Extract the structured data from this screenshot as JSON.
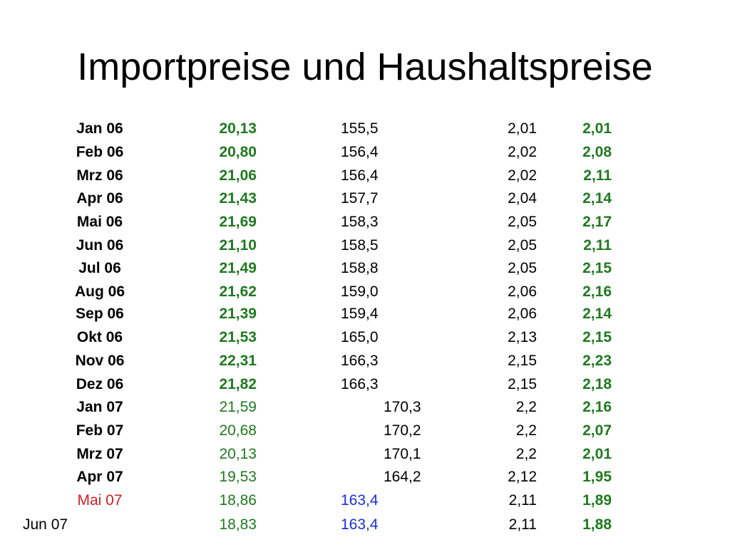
{
  "title": "Importpreise und Haushaltspreise",
  "rows": [
    {
      "month": "Jan 06",
      "import": "20,13",
      "index": "155,5",
      "price": "2,01",
      "household": "2,01"
    },
    {
      "month": "Feb 06",
      "import": "20,80",
      "index": "156,4",
      "price": "2,02",
      "household": "2,08"
    },
    {
      "month": "Mrz 06",
      "import": "21,06",
      "index": "156,4",
      "price": "2,02",
      "household": "2,11"
    },
    {
      "month": "Apr 06",
      "import": "21,43",
      "index": "157,7",
      "price": "2,04",
      "household": "2,14"
    },
    {
      "month": "Mai 06",
      "import": "21,69",
      "index": "158,3",
      "price": "2,05",
      "household": "2,17"
    },
    {
      "month": "Jun 06",
      "import": "21,10",
      "index": "158,5",
      "price": "2,05",
      "household": "2,11"
    },
    {
      "month": "Jul 06",
      "import": "21,49",
      "index": "158,8",
      "price": "2,05",
      "household": "2,15"
    },
    {
      "month": "Aug 06",
      "import": "21,62",
      "index": "159,0",
      "price": "2,06",
      "household": "2,16"
    },
    {
      "month": "Sep 06",
      "import": "21,39",
      "index": "159,4",
      "price": "2,06",
      "household": "2,14"
    },
    {
      "month": "Okt 06",
      "import": "21,53",
      "index": "165,0",
      "price": "2,13",
      "household": "2,15"
    },
    {
      "month": "Nov 06",
      "import": "22,31",
      "index": "166,3",
      "price": "2,15",
      "household": "2,23"
    },
    {
      "month": "Dez 06",
      "import": "21,82",
      "index": "166,3",
      "price": "2,15",
      "household": "2,18"
    },
    {
      "month": "Jan 07",
      "import": "21,59",
      "index": "170,3",
      "price": "2,2",
      "household": "2,16"
    },
    {
      "month": "Feb 07",
      "import": "20,68",
      "index": "170,2",
      "price": "2,2",
      "household": "2,07"
    },
    {
      "month": "Mrz 07",
      "import": "20,13",
      "index": "170,1",
      "price": "2,2",
      "household": "2,01"
    },
    {
      "month": "Apr 07",
      "import": "19,53",
      "index": "164,2",
      "price": "2,12",
      "household": "1,95"
    },
    {
      "month": "Mai 07",
      "import": "18,86",
      "index": "163,4",
      "price": "2,11",
      "household": "1,89"
    },
    {
      "month": "Jun 07",
      "import": "18,83",
      "index": "163,4",
      "price": "2,11",
      "household": "1,88"
    }
  ],
  "colors": {
    "green": "#1f7a1f",
    "red": "#d42020",
    "blue": "#1a2fd6"
  }
}
